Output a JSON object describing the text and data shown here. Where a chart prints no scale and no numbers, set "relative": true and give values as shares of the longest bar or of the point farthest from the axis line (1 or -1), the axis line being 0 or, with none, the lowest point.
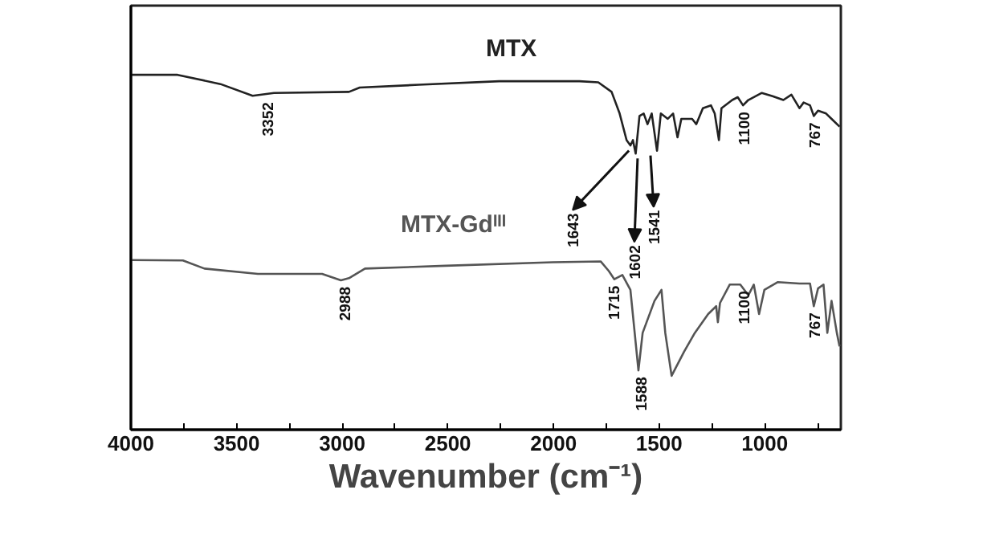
{
  "chart_data": {
    "type": "line",
    "relative": true,
    "xlabel": "Wavenumber (cm⁻¹)",
    "xlim": [
      4000,
      640
    ],
    "xticks": [
      4000,
      {
        "value": 3750,
        "label": null
      },
      3500,
      {
        "value": 3250,
        "label": null
      },
      3000,
      {
        "value": 2750,
        "label": null
      },
      2500,
      {
        "value": 2250,
        "label": null
      },
      2000,
      {
        "value": 1750,
        "label": null
      },
      1500,
      {
        "value": 1250,
        "label": null
      },
      1000,
      {
        "value": 750,
        "label": null
      }
    ],
    "tick_labels": "x",
    "grid": false,
    "marker": "none",
    "line_style": "solid",
    "series": [
      {
        "name": "MTX",
        "color": "#222222",
        "x": [
          4000,
          3779,
          3576,
          3424,
          3323,
          2968,
          2917,
          2638,
          2257,
          1877,
          1788,
          1725,
          1687,
          1654,
          1636,
          1624,
          1611,
          1593,
          1573,
          1555,
          1535,
          1510,
          1492,
          1459,
          1434,
          1413,
          1395,
          1344,
          1324,
          1293,
          1255,
          1237,
          1217,
          1205,
          1154,
          1128,
          1103,
          1078,
          1014,
          963,
          912,
          874,
          836,
          816,
          786,
          768,
          748,
          710,
          684,
          646
        ],
        "values": [
          1.0,
          1.0,
          0.974,
          0.941,
          0.949,
          0.952,
          0.964,
          0.972,
          0.982,
          0.982,
          0.979,
          0.952,
          0.891,
          0.816,
          0.801,
          0.816,
          0.778,
          0.884,
          0.891,
          0.861,
          0.891,
          0.786,
          0.891,
          0.876,
          0.891,
          0.824,
          0.876,
          0.876,
          0.861,
          0.906,
          0.914,
          0.891,
          0.816,
          0.906,
          0.929,
          0.937,
          0.914,
          0.929,
          0.949,
          0.94,
          0.929,
          0.944,
          0.906,
          0.922,
          0.914,
          0.884,
          0.899,
          0.891,
          0.876,
          0.854
        ]
      },
      {
        "name": "MTX-Gdᴵᴵᴵ",
        "color": "#555555",
        "x": [
          4000,
          3754,
          3652,
          3399,
          3095,
          3006,
          2968,
          2892,
          2511,
          2004,
          1776,
          1738,
          1712,
          1674,
          1636,
          1598,
          1578,
          1522,
          1489,
          1471,
          1441,
          1382,
          1331,
          1268,
          1230,
          1222,
          1212,
          1166,
          1116,
          1078,
          1052,
          1027,
          1002,
          938,
          836,
          786,
          768,
          748,
          722,
          704,
          684,
          659,
          646
        ],
        "values": [
          0.478,
          0.477,
          0.454,
          0.439,
          0.439,
          0.421,
          0.427,
          0.454,
          0.462,
          0.472,
          0.474,
          0.447,
          0.424,
          0.436,
          0.394,
          0.167,
          0.273,
          0.363,
          0.394,
          0.273,
          0.152,
          0.22,
          0.273,
          0.326,
          0.348,
          0.303,
          0.357,
          0.409,
          0.409,
          0.379,
          0.409,
          0.326,
          0.394,
          0.416,
          0.412,
          0.412,
          0.348,
          0.398,
          0.409,
          0.273,
          0.363,
          0.273,
          0.235
        ]
      }
    ],
    "annotations": [
      {
        "text": "3352",
        "x": 3352,
        "y": 0.941
      },
      {
        "text": "1643",
        "x": 1643,
        "y": 0.8
      },
      {
        "text": "1602",
        "x": 1602,
        "y": 0.778
      },
      {
        "text": "1541",
        "x": 1541,
        "y": 0.786
      },
      {
        "text": "1100",
        "x": 1100,
        "y": 0.914
      },
      {
        "text": "767",
        "x": 767,
        "y": 0.884
      },
      {
        "text": "2988",
        "x": 2988,
        "y": 0.421
      },
      {
        "text": "1715",
        "x": 1715,
        "y": 0.424
      },
      {
        "text": "1588",
        "x": 1588,
        "y": 0.167
      },
      {
        "text": "1100",
        "x": 1100,
        "y": 0.409
      },
      {
        "text": "767",
        "x": 767,
        "y": 0.348
      }
    ]
  }
}
